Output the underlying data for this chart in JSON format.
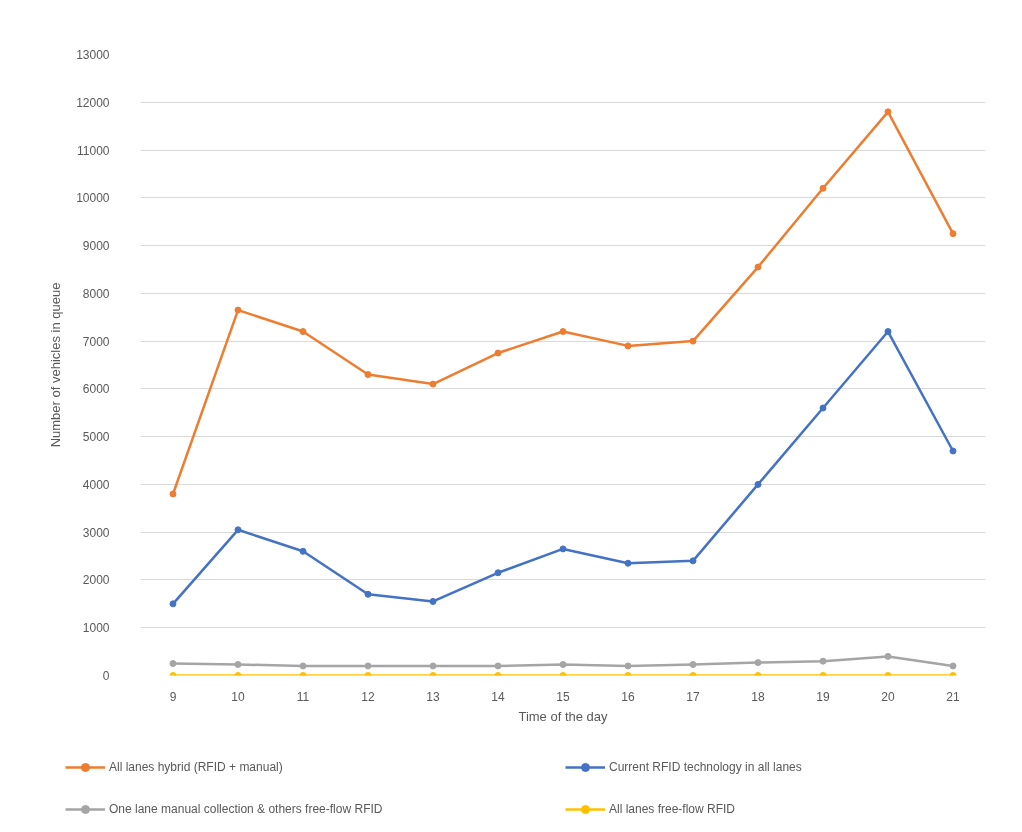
{
  "chart_data": {
    "type": "line",
    "xlabel": "Time of the day",
    "ylabel": "Number of vehicles in queue",
    "categories": [
      "9",
      "10",
      "11",
      "12",
      "13",
      "14",
      "15",
      "16",
      "17",
      "18",
      "19",
      "20",
      "21"
    ],
    "ylim": [
      0,
      13000
    ],
    "yticks": [
      0,
      1000,
      2000,
      3000,
      4000,
      5000,
      6000,
      7000,
      8000,
      9000,
      10000,
      11000,
      12000,
      13000
    ],
    "grid": "y",
    "legend": "bottom",
    "marker": "circle",
    "line_style": "solid",
    "series": [
      {
        "name": "All lanes hybrid (RFID + manual)",
        "color": "#ed7d31",
        "values": [
          3800,
          7650,
          7200,
          6300,
          6100,
          6750,
          7200,
          6900,
          7000,
          8550,
          10200,
          11800,
          9250
        ]
      },
      {
        "name": "Current RFID technology in all lanes",
        "color": "#4472c4",
        "values": [
          1500,
          3050,
          2600,
          1700,
          1550,
          2150,
          2650,
          2350,
          2400,
          4000,
          5600,
          7200,
          4700
        ]
      },
      {
        "name": "One lane manual collection & others free-flow RFID",
        "color": "#a5a5a5",
        "values": [
          250,
          230,
          200,
          200,
          200,
          200,
          230,
          200,
          230,
          270,
          300,
          400,
          200
        ]
      },
      {
        "name": "All lanes free-flow RFID",
        "color": "#ffc000",
        "values": [
          0,
          0,
          0,
          0,
          0,
          0,
          0,
          0,
          0,
          0,
          0,
          0,
          0
        ]
      }
    ]
  }
}
